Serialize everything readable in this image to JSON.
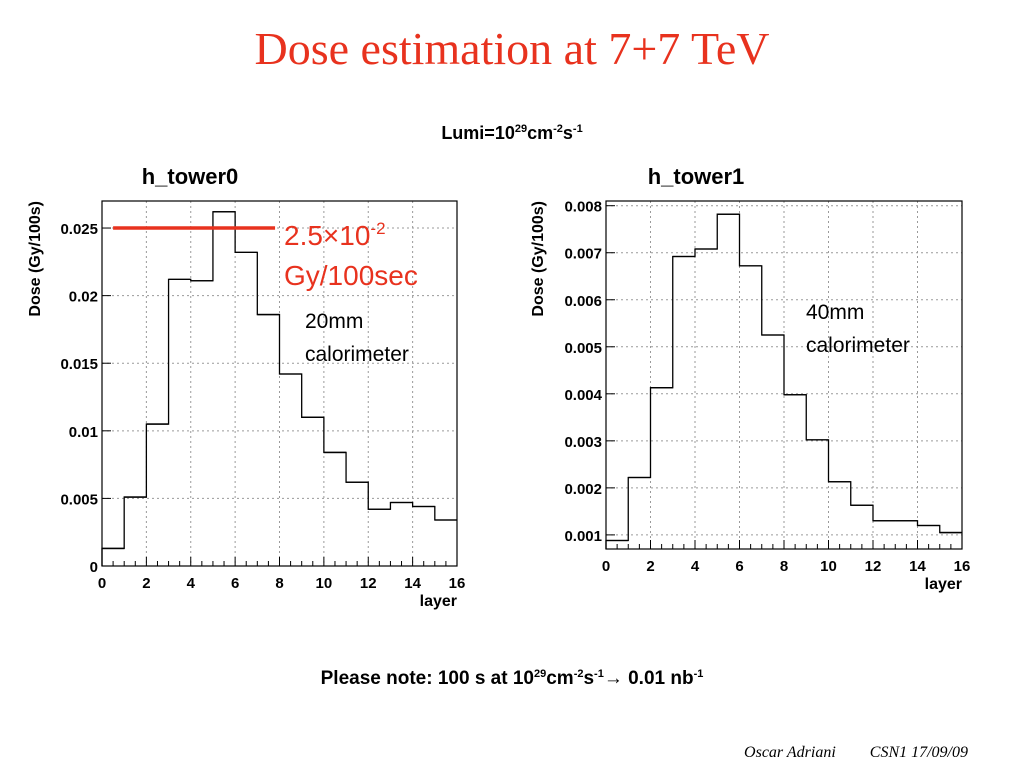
{
  "slide_title": "Dose estimation at 7+7 TeV",
  "lumi": {
    "prefix": "Lumi=10",
    "exp1": "29",
    "mid": "cm",
    "exp2": "-2",
    "unit2": "s",
    "exp3": "-1"
  },
  "note": {
    "prefix": "Please note: 100 s at 10",
    "exp1": "29",
    "mid": "cm",
    "exp2": "-2",
    "unit2": "s",
    "exp3": "-1",
    "arrow": "→ 0.01 nb",
    "exp4": "-1"
  },
  "footer": {
    "author": "Oscar Adriani",
    "event": "CSN1 17/09/09"
  },
  "annotations": {
    "red_value": "2.5×10",
    "red_exp": "-2",
    "red_unit": "Gy/100sec",
    "tower0_line1": "20mm",
    "tower0_line2": "calorimeter",
    "tower1_line1": "40mm",
    "tower1_line2": "calorimeter"
  },
  "colors": {
    "title": "#e8321e",
    "marker_line": "#e8321e",
    "histogram": "#000000",
    "grid": "#9a9a9a"
  },
  "chart_data": [
    {
      "type": "histogram",
      "title": "h_tower0",
      "xlabel": "layer",
      "ylabel": "Dose (Gy/100s)",
      "xlim": [
        0,
        16
      ],
      "ylim": [
        0,
        0.027
      ],
      "grid": true,
      "x_ticks": [
        "0",
        "2",
        "4",
        "6",
        "8",
        "10",
        "12",
        "14",
        "16"
      ],
      "y_ticks": [
        {
          "v": 0,
          "label": "0"
        },
        {
          "v": 0.005,
          "label": "0.005"
        },
        {
          "v": 0.01,
          "label": "0.01"
        },
        {
          "v": 0.015,
          "label": "0.015"
        },
        {
          "v": 0.02,
          "label": "0.02"
        },
        {
          "v": 0.025,
          "label": "0.025"
        }
      ],
      "bin_edges": [
        0,
        1,
        2,
        3,
        4,
        5,
        6,
        7,
        8,
        9,
        10,
        11,
        12,
        13,
        14,
        15,
        16
      ],
      "values": [
        0.0013,
        0.0051,
        0.0105,
        0.0212,
        0.0211,
        0.0262,
        0.0232,
        0.0186,
        0.0142,
        0.011,
        0.0084,
        0.0062,
        0.0042,
        0.0047,
        0.0044,
        0.0034
      ],
      "reference_line": {
        "y": 0.025,
        "x_range": [
          0.5,
          7.8
        ]
      }
    },
    {
      "type": "histogram",
      "title": "h_tower1",
      "xlabel": "layer",
      "ylabel": "Dose (Gy/100s)",
      "xlim": [
        0,
        16
      ],
      "ylim": [
        0.0007,
        0.0081
      ],
      "grid": true,
      "x_ticks": [
        "0",
        "2",
        "4",
        "6",
        "8",
        "10",
        "12",
        "14",
        "16"
      ],
      "y_ticks": [
        {
          "v": 0.001,
          "label": "0.001"
        },
        {
          "v": 0.002,
          "label": "0.002"
        },
        {
          "v": 0.003,
          "label": "0.003"
        },
        {
          "v": 0.004,
          "label": "0.004"
        },
        {
          "v": 0.005,
          "label": "0.005"
        },
        {
          "v": 0.006,
          "label": "0.006"
        },
        {
          "v": 0.007,
          "label": "0.007"
        },
        {
          "v": 0.008,
          "label": "0.008"
        }
      ],
      "bin_edges": [
        0,
        1,
        2,
        3,
        4,
        5,
        6,
        7,
        8,
        9,
        10,
        11,
        12,
        13,
        14,
        15,
        16
      ],
      "values": [
        0.00088,
        0.00222,
        0.00413,
        0.00692,
        0.00708,
        0.00782,
        0.00672,
        0.00525,
        0.00398,
        0.00302,
        0.00213,
        0.00163,
        0.0013,
        0.0013,
        0.0012,
        0.00105
      ]
    }
  ]
}
